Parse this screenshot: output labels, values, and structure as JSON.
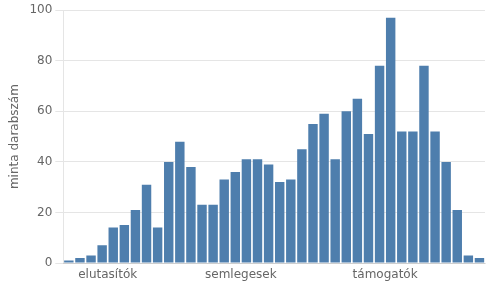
{
  "chart_data": {
    "type": "bar",
    "ylabel": "minta darabszám",
    "categories": [
      null,
      null,
      null,
      null,
      null,
      null,
      null,
      null,
      null,
      null,
      null,
      null,
      null,
      null,
      null,
      null,
      null,
      null,
      null,
      null,
      null,
      null,
      null,
      null,
      null,
      null,
      null,
      null,
      null,
      null,
      null,
      null,
      null,
      null,
      null,
      null,
      null,
      null
    ],
    "values": [
      1,
      2,
      3,
      7,
      14,
      15,
      21,
      31,
      14,
      40,
      48,
      38,
      23,
      23,
      33,
      36,
      41,
      41,
      39,
      32,
      33,
      45,
      55,
      59,
      41,
      60,
      65,
      51,
      78,
      97,
      52,
      52,
      78,
      52,
      40,
      21,
      3,
      2
    ],
    "color": "#4E7EAD",
    "ylim": [
      0,
      100
    ],
    "yticks": [
      0,
      20,
      40,
      60,
      80,
      100
    ],
    "grid": true,
    "tick_labels": "y",
    "annotations": [
      {
        "text": "elutasítók",
        "x": 3.5
      },
      {
        "text": "semlegesek",
        "x": 15.5
      },
      {
        "text": "támogatók",
        "x": 28.5
      }
    ]
  }
}
